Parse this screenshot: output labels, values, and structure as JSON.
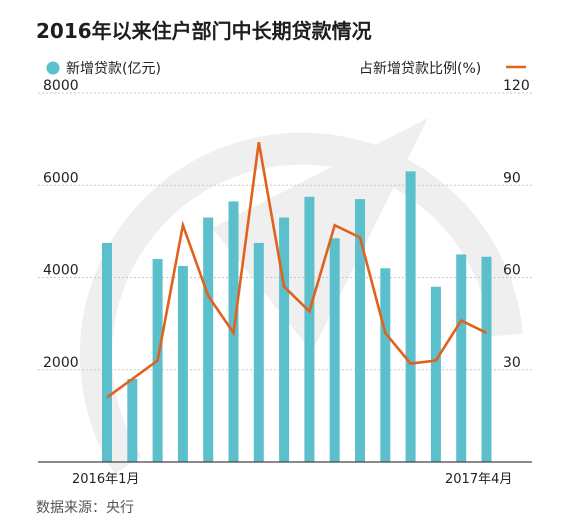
{
  "title": "2016年以来住户部门中长期贷款情况",
  "source": "数据来源：央行",
  "colors": {
    "bar": "#5bc0cb",
    "line": "#e0621c",
    "grid": "#c9c9c9",
    "watermark": "#efefef",
    "axis": "#444444"
  },
  "chart_data": {
    "type": "bar+line",
    "x_tick_labels": [
      "2016年1月",
      "2017年4月"
    ],
    "y_left": {
      "label": "新增贷款(亿元)",
      "ticks": [
        "2000",
        "4000",
        "6000",
        "8000"
      ],
      "ylim": [
        0,
        8000
      ]
    },
    "y_right": {
      "label": "占新增贷款比例(%)",
      "ticks": [
        "30",
        "60",
        "90",
        "120"
      ],
      "ylim": [
        0,
        120
      ]
    },
    "grid": true,
    "legend_placement": "top",
    "series": [
      {
        "name": "新增贷款(亿元)",
        "type": "bar",
        "axis": "left",
        "values": [
          4750,
          1800,
          4400,
          4250,
          5300,
          5650,
          4750,
          5300,
          5750,
          4850,
          5700,
          4200,
          6300,
          3800,
          4500,
          4450
        ]
      },
      {
        "name": "占新增贷款比例(%)",
        "type": "line",
        "axis": "right",
        "values": [
          21,
          27,
          33,
          77,
          54,
          42,
          104,
          57,
          49,
          77,
          73,
          42,
          32,
          33,
          46,
          42
        ]
      }
    ]
  }
}
